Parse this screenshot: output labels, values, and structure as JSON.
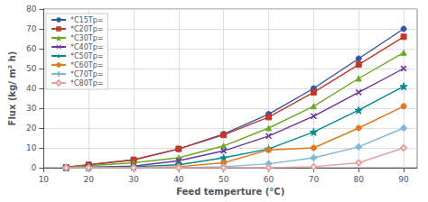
{
  "chart_data": {
    "type": "line",
    "x": [
      15,
      20,
      30,
      40,
      50,
      60,
      70,
      80,
      90
    ],
    "series": [
      {
        "name": "*C15Tp=",
        "color": "#3255a4",
        "marker": "circle",
        "values": [
          0.2,
          1.5,
          4.0,
          9.5,
          17.0,
          27.0,
          40.0,
          55.0,
          70.0
        ]
      },
      {
        "name": "*C20Tp=",
        "color": "#c0392b",
        "marker": "square",
        "values": [
          0.2,
          1.5,
          4.0,
          9.5,
          16.5,
          25.5,
          38.0,
          52.0,
          66.0
        ]
      },
      {
        "name": "*C30Tp=",
        "color": "#6aaa22",
        "marker": "triangle",
        "values": [
          0.1,
          1.0,
          2.5,
          5.0,
          11.0,
          20.0,
          31.0,
          45.0,
          58.0
        ]
      },
      {
        "name": "*C40Tp=",
        "color": "#7030a0",
        "marker": "x",
        "values": [
          0.0,
          0.3,
          0.8,
          3.5,
          8.5,
          16.0,
          26.0,
          38.0,
          50.0
        ]
      },
      {
        "name": "*C50Tp=",
        "color": "#008b8b",
        "marker": "star",
        "values": [
          0.0,
          0.2,
          0.5,
          1.5,
          5.0,
          9.5,
          18.0,
          29.0,
          41.0
        ]
      },
      {
        "name": "*C60Tp=",
        "color": "#e07820",
        "marker": "circle",
        "values": [
          0.0,
          0.0,
          0.0,
          0.5,
          2.5,
          9.0,
          10.0,
          20.0,
          31.0
        ]
      },
      {
        "name": "*C70Tp=",
        "color": "#7fb8d4",
        "marker": "plus",
        "values": [
          0.0,
          0.0,
          0.0,
          0.0,
          0.5,
          2.0,
          5.0,
          10.5,
          20.0
        ]
      },
      {
        "name": "*C80Tp=",
        "color": "#e8a0a0",
        "marker": "diamond_open",
        "values": [
          0.0,
          0.0,
          0.0,
          0.0,
          0.0,
          0.0,
          0.5,
          2.5,
          10.0
        ]
      }
    ],
    "xlabel": "Feed temperture (°C)",
    "ylabel": "Flux (kg/ m² h)",
    "xlim": [
      10,
      93
    ],
    "ylim": [
      0,
      80
    ],
    "xticks": [
      10,
      20,
      30,
      40,
      50,
      60,
      70,
      80,
      90
    ],
    "yticks": [
      0,
      10,
      20,
      30,
      40,
      50,
      60,
      70,
      80
    ],
    "grid": true,
    "legend": "upper left"
  }
}
